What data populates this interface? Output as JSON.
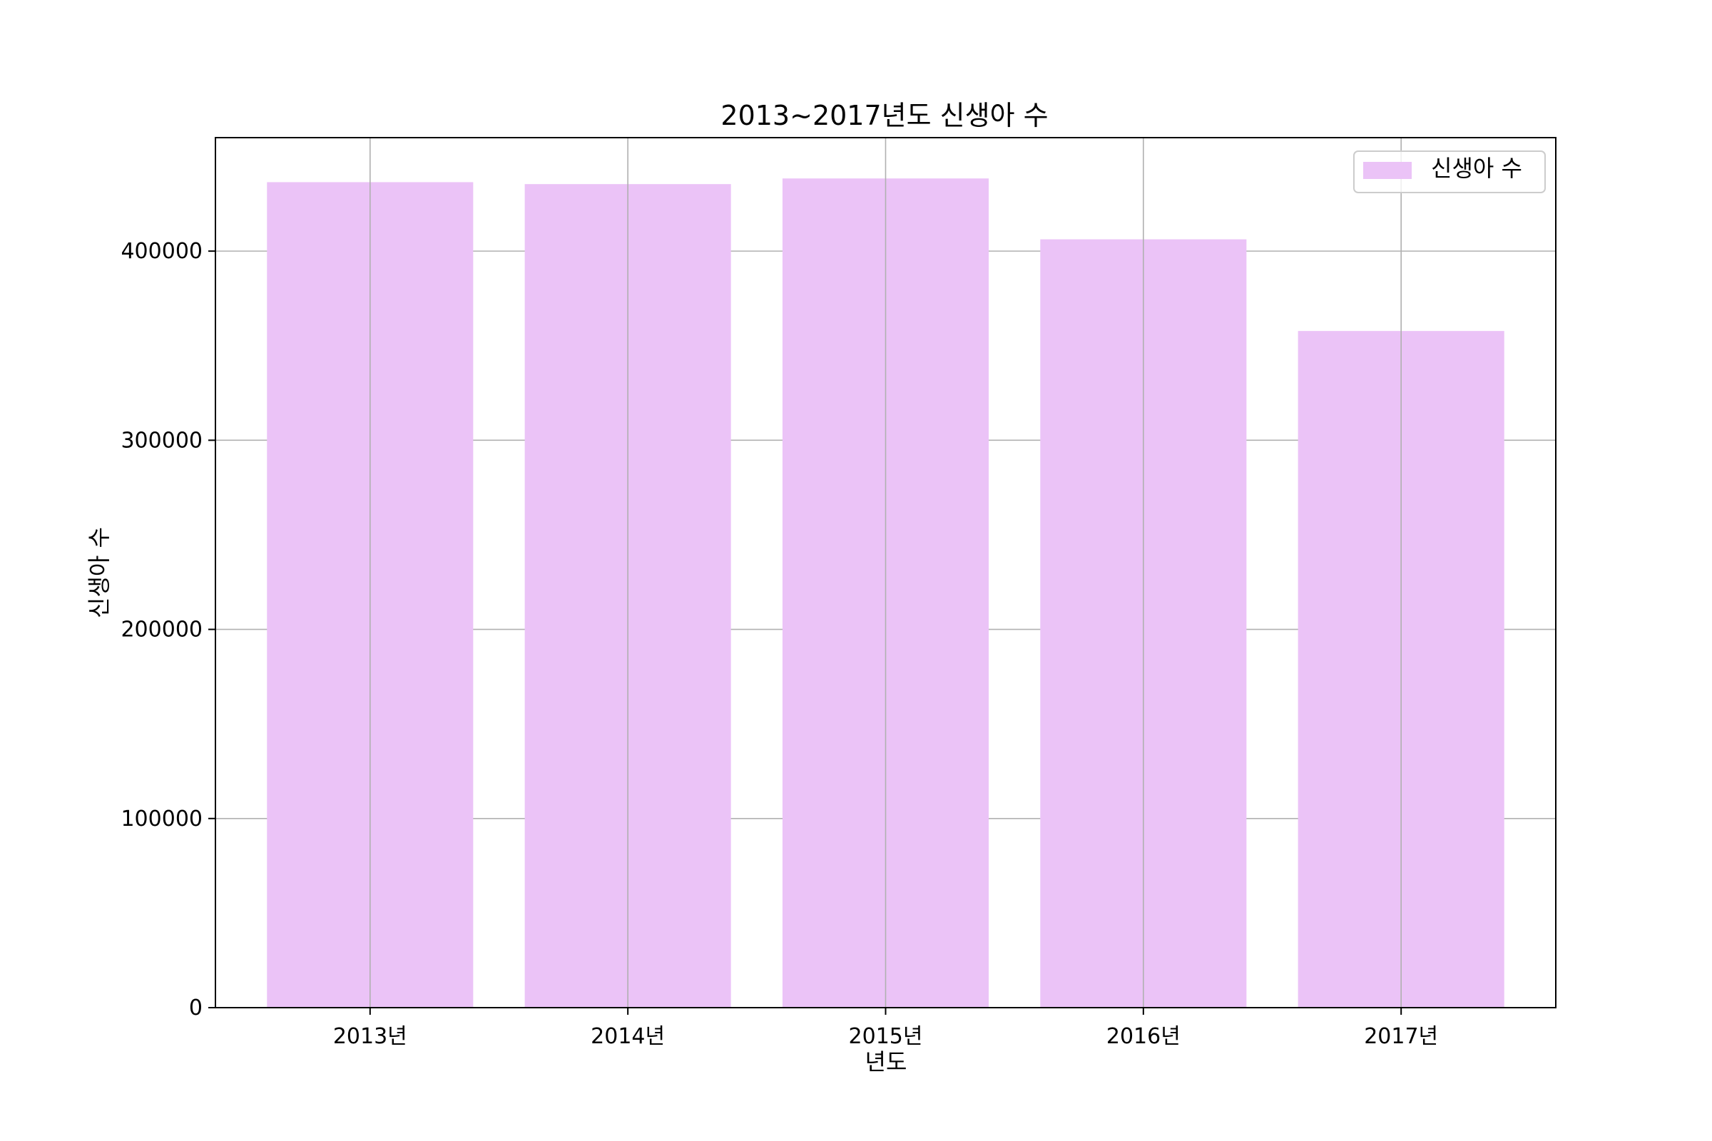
{
  "chart_data": {
    "type": "bar",
    "title": "2013~2017년도 신생아 수",
    "xlabel": "년도",
    "ylabel": "신생아 수",
    "categories": [
      "2013년",
      "2014년",
      "2015년",
      "2016년",
      "2017년"
    ],
    "series": [
      {
        "name": "신생아 수",
        "values": [
          436455,
          435435,
          438420,
          406243,
          357771
        ]
      }
    ],
    "ylim": [
      0,
      460000
    ],
    "yticks": [
      0,
      100000,
      200000,
      300000,
      400000
    ],
    "ytick_labels": [
      "0",
      "100000",
      "200000",
      "300000",
      "400000"
    ],
    "grid": true,
    "legend_position": "top-right",
    "colors": {
      "bar": "#ebc3f7",
      "grid": "#b0b0b0",
      "axis": "#000000"
    }
  }
}
